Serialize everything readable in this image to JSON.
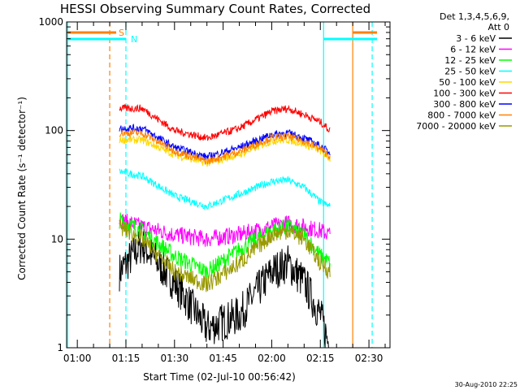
{
  "chart_data": {
    "type": "line",
    "title": "HESSI Observing Summary Count Rates, Corrected",
    "xlabel": "Start Time (02-Jul-10 00:56:42)",
    "ylabel": "Corrected Count Rate (s⁻¹ detector⁻¹)",
    "yscale": "log",
    "ylim": [
      1,
      1000
    ],
    "xlim": [
      "00:56:42",
      "02:36:30"
    ],
    "x_ticks": [
      "01:00",
      "01:15",
      "01:30",
      "01:45",
      "02:00",
      "02:15",
      "02:30"
    ],
    "y_ticks": [
      "1",
      "10",
      "100",
      "1000"
    ],
    "legend": {
      "placement": "right",
      "header": [
        "Det 1,3,4,5,6,9,",
        "Att 0"
      ]
    },
    "flags": [
      {
        "label": "S",
        "color": "#ff8000",
        "start": "00:57",
        "end": "01:12"
      },
      {
        "label": "N",
        "color": "#00ffff",
        "start": "00:57",
        "end": "01:15"
      }
    ],
    "markers": [
      {
        "time": "00:57",
        "color": "#00ffff",
        "style": "solid"
      },
      {
        "time": "01:10",
        "color": "#ff8000",
        "style": "dashed"
      },
      {
        "time": "01:15",
        "color": "#00ffff",
        "style": "dashed"
      },
      {
        "time": "02:16",
        "color": "#00ffff",
        "style": "solid"
      },
      {
        "time": "02:25",
        "color": "#ff8000",
        "style": "solid"
      },
      {
        "time": "02:31",
        "color": "#00ffff",
        "style": "dashed"
      }
    ],
    "time_samples": [
      "01:13",
      "01:20",
      "01:30",
      "01:40",
      "01:50",
      "02:00",
      "02:05",
      "02:10",
      "02:15",
      "02:18"
    ],
    "series": [
      {
        "name": "3 - 6 keV",
        "color": "#000000",
        "values": [
          5,
          9,
          4,
          1.5,
          2,
          5,
          6,
          4,
          2,
          1
        ]
      },
      {
        "name": "6 - 12 keV",
        "color": "#ff00ff",
        "values": [
          15,
          13,
          11,
          10,
          11,
          13,
          14,
          13,
          12,
          11
        ]
      },
      {
        "name": "12 - 25 keV",
        "color": "#00ff00",
        "values": [
          15,
          12,
          7,
          5,
          8,
          12,
          13,
          11,
          7,
          6
        ]
      },
      {
        "name": "25 - 50 keV",
        "color": "#00ffff",
        "values": [
          42,
          38,
          25,
          20,
          26,
          34,
          35,
          30,
          22,
          20
        ]
      },
      {
        "name": "50 - 100 keV",
        "color": "#ffd700",
        "values": [
          82,
          82,
          60,
          50,
          60,
          80,
          82,
          75,
          65,
          55
        ]
      },
      {
        "name": "100 - 300 keV",
        "color": "#ff0000",
        "values": [
          160,
          160,
          100,
          85,
          105,
          150,
          160,
          140,
          120,
          100
        ]
      },
      {
        "name": "300 - 800 keV",
        "color": "#0000ff",
        "values": [
          105,
          105,
          70,
          57,
          70,
          92,
          95,
          85,
          72,
          62
        ]
      },
      {
        "name": "800 - 7000 keV",
        "color": "#ff8000",
        "values": [
          95,
          95,
          65,
          52,
          64,
          86,
          88,
          80,
          68,
          58
        ]
      },
      {
        "name": "7000 - 20000 keV",
        "color": "#999900",
        "values": [
          13,
          10,
          5,
          3.8,
          6,
          11,
          12,
          10,
          6,
          5
        ]
      }
    ]
  },
  "footer": {
    "date": "30-Aug-2010 22:25"
  }
}
